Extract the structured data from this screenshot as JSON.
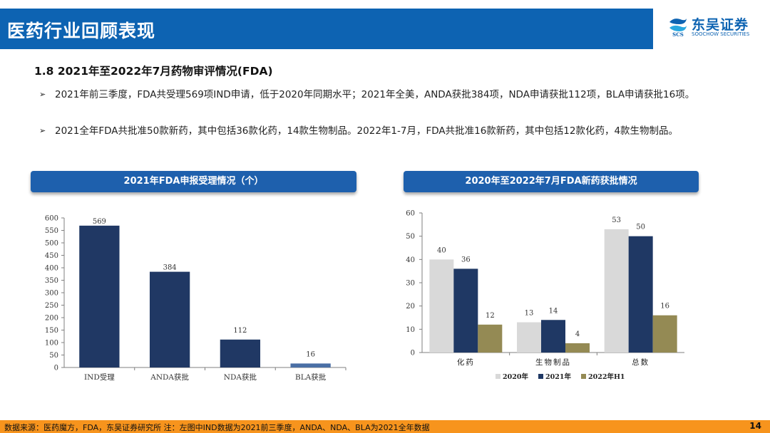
{
  "header": {
    "title": "医药行业回顾表现"
  },
  "logo": {
    "name": "东吴证券",
    "sub": "SOOCHOW SECURITIES",
    "mark_text": "SCS"
  },
  "section": {
    "title": "1.8 2021年至2022年7月药物审评情况(FDA)"
  },
  "bullets": [
    "2021年前三季度，FDA共受理569项IND申请，低于2020年同期水平；2021年全美，ANDA获批384项，NDA申请获批112项，BLA申请获批16项。",
    "2021全年FDA共批准50款新药，其中包括36款化药，14款生物制品。2022年1-7月，FDA共批准16款新药，其中包括12款化药，4款生物制品。"
  ],
  "bullet_icon": "arrow-right-icon",
  "panels": [
    {
      "title": "2021年FDA申报受理情况（个）"
    },
    {
      "title": "2020年至2022年7月FDA新药获批情况"
    }
  ],
  "chart_data": [
    {
      "type": "bar",
      "categories": [
        "IND受理",
        "ANDA获批",
        "NDA获批",
        "BLA获批"
      ],
      "values": [
        569,
        384,
        112,
        16
      ],
      "bar_colors": [
        "#203864",
        "#203864",
        "#203864",
        "#4a6fa5"
      ],
      "ylim": [
        0,
        600
      ],
      "yticks": [
        0,
        50,
        100,
        150,
        200,
        250,
        300,
        350,
        400,
        450,
        500,
        550,
        600
      ],
      "data_labels": true,
      "grid": false
    },
    {
      "type": "bar",
      "categories": [
        "化药",
        "生物制品",
        "总数"
      ],
      "series": [
        {
          "name": "2020年",
          "values": [
            40,
            13,
            53
          ],
          "color": "#d9d9d9"
        },
        {
          "name": "2021年",
          "values": [
            36,
            14,
            50
          ],
          "color": "#1f3864"
        },
        {
          "name": "2022年H1",
          "values": [
            12,
            4,
            16
          ],
          "color": "#948a54"
        }
      ],
      "ylim": [
        0,
        60
      ],
      "yticks": [
        0,
        10,
        20,
        30,
        40,
        50,
        60
      ],
      "legend": "bottom",
      "data_labels": true,
      "grid": false
    }
  ],
  "footer": {
    "note": "数据来源：医药魔方，FDA，东吴证券研究所    注：左图中IND数据为2021前三季度，ANDA、NDA、BLA为2021全年数据",
    "page": "14"
  }
}
